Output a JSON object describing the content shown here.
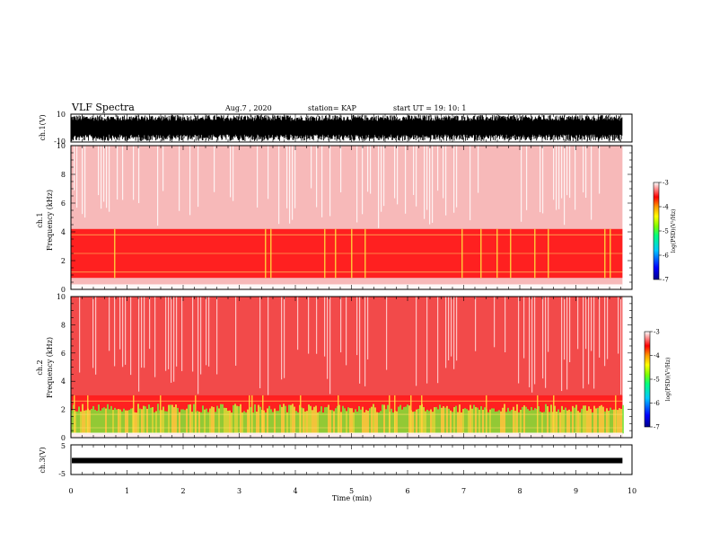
{
  "header": {
    "title": "VLF Spectra",
    "date": "Aug.7 , 2020",
    "station": "station= KAP",
    "start_time": "start UT = 19: 10: 1"
  },
  "chart_data": [
    {
      "type": "line",
      "id": "ch1-waveform",
      "ylabel": "ch.1(V)",
      "ylim": [
        -10,
        10
      ],
      "yticks": [
        "10",
        "-10"
      ],
      "xlim": [
        0,
        10
      ],
      "description_values": {
        "amplitude_min": -10,
        "amplitude_max": 10,
        "end_min": 9.83
      }
    },
    {
      "type": "heatmap",
      "id": "ch1-spectrogram",
      "ylabel": "ch.1 Frequency (kHz)",
      "ylabel_lines": [
        "ch.1",
        "Frequency (kHz)"
      ],
      "ylim": [
        0,
        10
      ],
      "yticks": [
        "0",
        "2",
        "4",
        "6",
        "8",
        "10"
      ],
      "xlim": [
        0,
        10
      ],
      "intense_band_khz": [
        0.8,
        4.2
      ],
      "colorbar": {
        "label": "log(PSD)(V²/Hz)",
        "range": [
          -7,
          -3
        ],
        "ticks": [
          "-3",
          "-4",
          "-5",
          "-6",
          "-7"
        ]
      }
    },
    {
      "type": "heatmap",
      "id": "ch2-spectrogram",
      "ylabel": "ch.2 Frequency (kHz)",
      "ylabel_lines": [
        "ch.2",
        "Frequency (kHz)"
      ],
      "ylim": [
        0,
        10
      ],
      "yticks": [
        "0",
        "2",
        "4",
        "6",
        "8",
        "10"
      ],
      "xlim": [
        0,
        10
      ],
      "intense_band_khz": [
        0.3,
        3.0
      ],
      "colorbar": {
        "label": "log(PSD)(V²/Hz)",
        "range": [
          -7,
          -3
        ],
        "ticks": [
          "-3",
          "-4",
          "-5",
          "-6",
          "-7"
        ]
      }
    },
    {
      "type": "line",
      "id": "ch3-waveform",
      "ylabel": "ch.3(V)",
      "ylim": [
        -5,
        5
      ],
      "yticks": [
        "5",
        "0",
        "-5"
      ],
      "xlim": [
        0,
        10
      ],
      "level": -0.3
    }
  ],
  "x_axis": {
    "label": "Time (min)",
    "ticks": [
      "0",
      "1",
      "2",
      "3",
      "4",
      "5",
      "6",
      "7",
      "8",
      "9",
      "10"
    ]
  },
  "colors": {
    "background": "#ffffff",
    "axes": "#000000",
    "colormap": [
      "#00008c",
      "#0000ff",
      "#00c8ff",
      "#00ff80",
      "#80ff00",
      "#ffff00",
      "#ff9900",
      "#ff0000",
      "#ffffff"
    ]
  }
}
